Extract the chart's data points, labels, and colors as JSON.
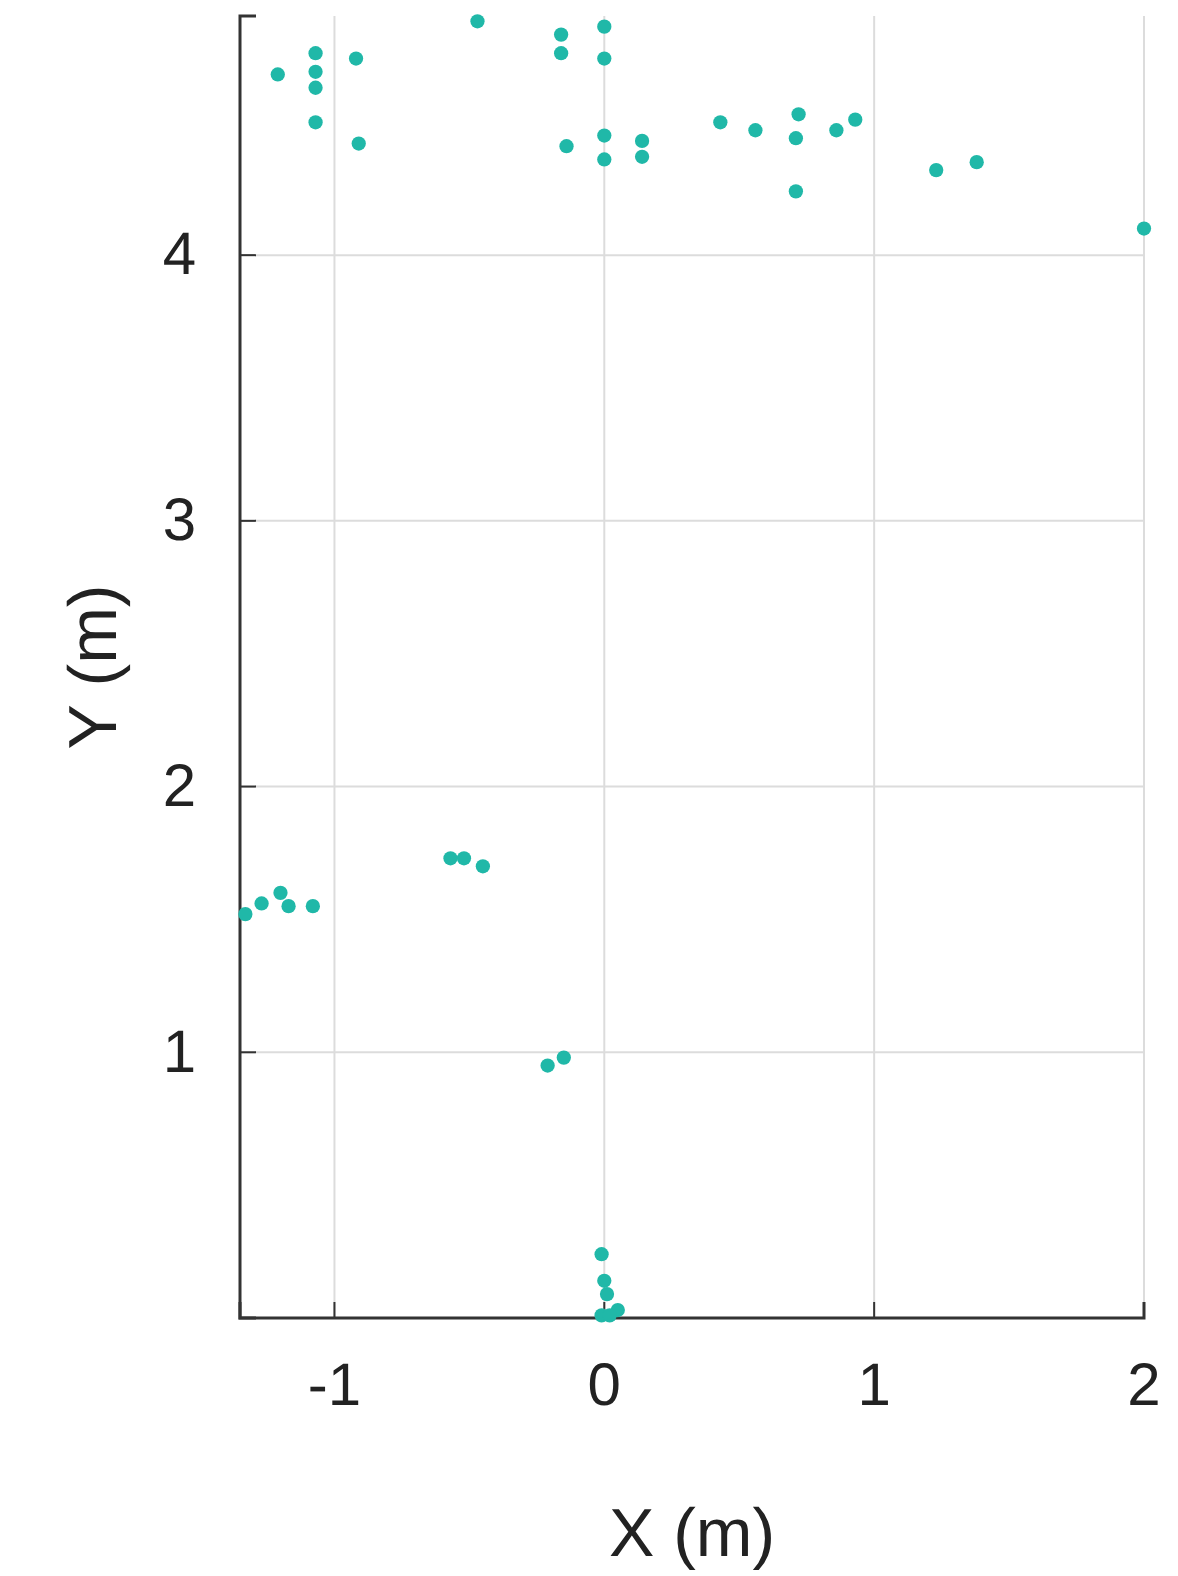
{
  "chart_data": {
    "type": "scatter",
    "xlabel": "X (m)",
    "ylabel": "Y (m)",
    "xlim": [
      -1.35,
      2
    ],
    "ylim": [
      0,
      4.9
    ],
    "xticks": [
      -1,
      0,
      1,
      2
    ],
    "yticks": [
      1,
      2,
      3,
      4
    ],
    "grid": true,
    "marker": "circle",
    "series": [
      {
        "color": "#20b8a8",
        "x": [
          -1.21,
          -1.07,
          -1.07,
          -1.07,
          -1.07,
          -0.92,
          -0.91,
          -0.47,
          -0.16,
          -0.16,
          0,
          0,
          -0.14,
          0,
          0,
          0.14,
          0.14,
          0.43,
          0.56,
          0.72,
          0.71,
          0.86,
          0.93,
          0.71,
          1.23,
          1.38,
          2.0,
          -1.33,
          -1.27,
          -1.2,
          -1.17,
          -1.08,
          -0.57,
          -0.52,
          -0.45,
          -0.21,
          -0.15,
          -0.01,
          0,
          0.01,
          -0.01,
          0.05,
          0.02
        ],
        "values": [
          4.68,
          4.76,
          4.69,
          4.63,
          4.5,
          4.74,
          4.42,
          4.88,
          4.83,
          4.76,
          4.86,
          4.74,
          4.41,
          4.45,
          4.36,
          4.43,
          4.37,
          4.5,
          4.47,
          4.53,
          4.44,
          4.47,
          4.51,
          4.24,
          4.32,
          4.35,
          4.1,
          1.52,
          1.56,
          1.6,
          1.55,
          1.55,
          1.73,
          1.73,
          1.7,
          0.95,
          0.98,
          0.24,
          0.14,
          0.09,
          0.01,
          0.03,
          0.01
        ]
      }
    ]
  }
}
